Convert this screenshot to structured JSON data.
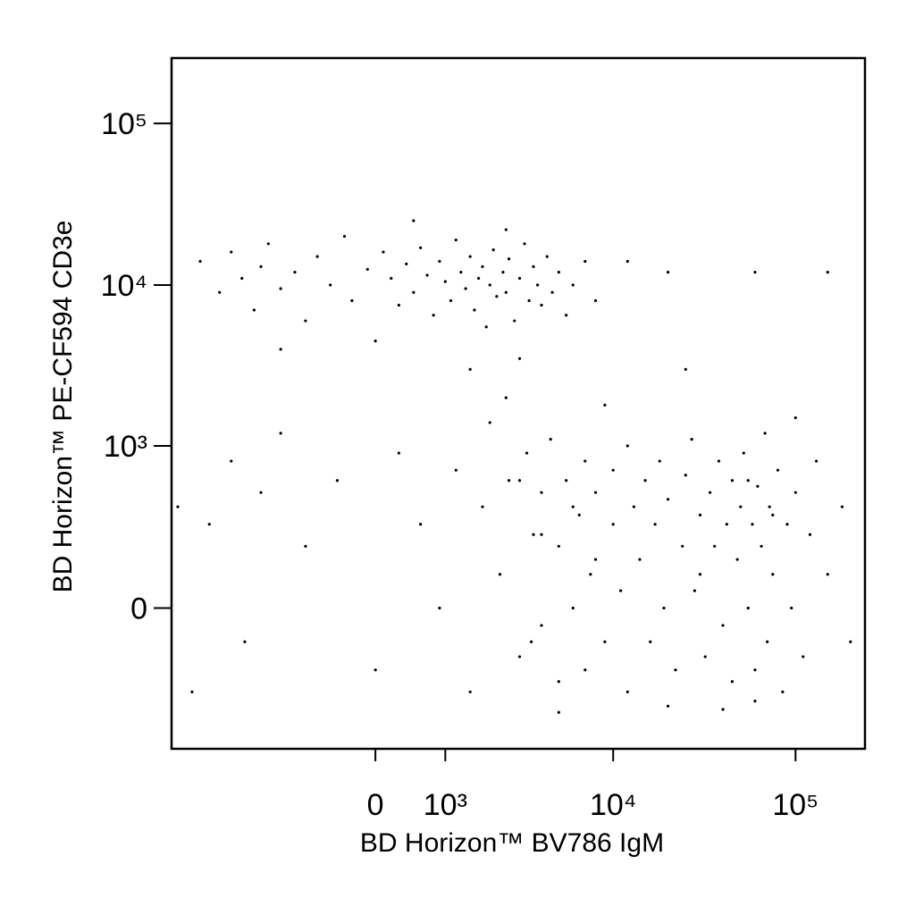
{
  "chart_data": {
    "type": "scatter",
    "x_label": "BD Horizon™ BV786 IgM",
    "y_label": "BD Horizon™ PE-CF594 CD3e",
    "xscale": "biexponential",
    "yscale": "biexponential",
    "color": "#000000",
    "xlim": [
      -6500,
      240000
    ],
    "ylim": [
      -730,
      254000
    ],
    "xticks": [
      0,
      {
        "value": 1000,
        "label": "10³"
      },
      {
        "value": 10000,
        "label": "10⁴"
      },
      {
        "value": 100000,
        "label": "10⁵"
      }
    ],
    "yticks": [
      0,
      {
        "value": 1000,
        "label": "10³"
      },
      {
        "value": 10000,
        "label": "10⁴"
      },
      {
        "value": 100000,
        "label": "10⁵"
      }
    ],
    "x": [
      -4500,
      -3500,
      -3000,
      -2600,
      -2200,
      -2000,
      -1800,
      -1500,
      -1200,
      -1000,
      -800,
      -600,
      -400,
      -300,
      -100,
      0,
      100,
      200,
      300,
      400,
      500,
      600,
      700,
      800,
      900,
      1000,
      1100,
      1200,
      1300,
      1400,
      1500,
      1600,
      1700,
      1800,
      1900,
      2000,
      2100,
      2200,
      2400,
      2500,
      2600,
      2800,
      3000,
      3200,
      3400,
      3600,
      3800,
      4000,
      4300,
      4600,
      5000,
      5500,
      6000,
      7000,
      8000,
      3000,
      1500,
      -1500,
      500,
      2500,
      12000,
      20000,
      60000,
      150000,
      -4000,
      -3000,
      -2500,
      -2000,
      -1500,
      -1000,
      -500,
      0,
      300,
      600,
      900,
      1200,
      1500,
      1800,
      2000,
      2300,
      2600,
      3000,
      3300,
      3600,
      4000,
      4000,
      4500,
      5000,
      5000,
      5500,
      6000,
      6500,
      7000,
      7000,
      8000,
      8000,
      9000,
      10000,
      10000,
      11000,
      12000,
      12000,
      13000,
      14000,
      15000,
      16000,
      17000,
      18000,
      19000,
      20000,
      22000,
      24000,
      25000,
      27000,
      28000,
      30000,
      32000,
      34000,
      36000,
      38000,
      40000,
      42000,
      45000,
      45000,
      48000,
      50000,
      52000,
      55000,
      58000,
      60000,
      62000,
      65000,
      68000,
      70000,
      72000,
      75000,
      80000,
      85000,
      90000,
      95000,
      100000,
      110000,
      120000,
      130000,
      150000,
      180000,
      200000,
      40000,
      5000,
      20000,
      60000,
      2500,
      9000,
      25000,
      3000,
      4000,
      6000,
      3500,
      7500,
      30000,
      55000,
      75000,
      -6000,
      -5000,
      100000
    ],
    "values": [
      14000,
      9000,
      16000,
      11000,
      7000,
      13000,
      18000,
      9500,
      12000,
      6000,
      15000,
      10000,
      20000,
      8000,
      12500,
      4500,
      16000,
      11000,
      7500,
      13500,
      9000,
      17000,
      11500,
      6500,
      14000,
      10500,
      8000,
      19000,
      12000,
      9500,
      15000,
      7000,
      11000,
      13000,
      5500,
      10000,
      16500,
      8500,
      12000,
      9000,
      14500,
      6000,
      11000,
      18000,
      8000,
      13000,
      10000,
      7500,
      15000,
      9000,
      12000,
      6500,
      10000,
      14000,
      8000,
      3500,
      3000,
      4000,
      25000,
      22000,
      14000,
      12000,
      12000,
      12000,
      300,
      800,
      -100,
      500,
      1200,
      200,
      600,
      -200,
      900,
      300,
      0,
      700,
      -300,
      400,
      1400,
      100,
      600,
      -150,
      900,
      250,
      500,
      -50,
      1100,
      200,
      -250,
      600,
      0,
      350,
      800,
      -200,
      150,
      500,
      -100,
      300,
      700,
      50,
      1000,
      -300,
      400,
      150,
      600,
      -100,
      300,
      800,
      0,
      450,
      -200,
      200,
      650,
      1100,
      50,
      350,
      -150,
      500,
      200,
      800,
      -50,
      300,
      600,
      -250,
      150,
      400,
      900,
      0,
      300,
      -200,
      550,
      200,
      1200,
      -100,
      400,
      100,
      700,
      -300,
      300,
      0,
      500,
      -150,
      250,
      800,
      100,
      400,
      -100,
      -400,
      -420,
      -380,
      -350,
      2000,
      1800,
      3000,
      600,
      250,
      400,
      -100,
      100,
      100,
      600,
      350,
      400,
      -300,
      1500
    ]
  }
}
